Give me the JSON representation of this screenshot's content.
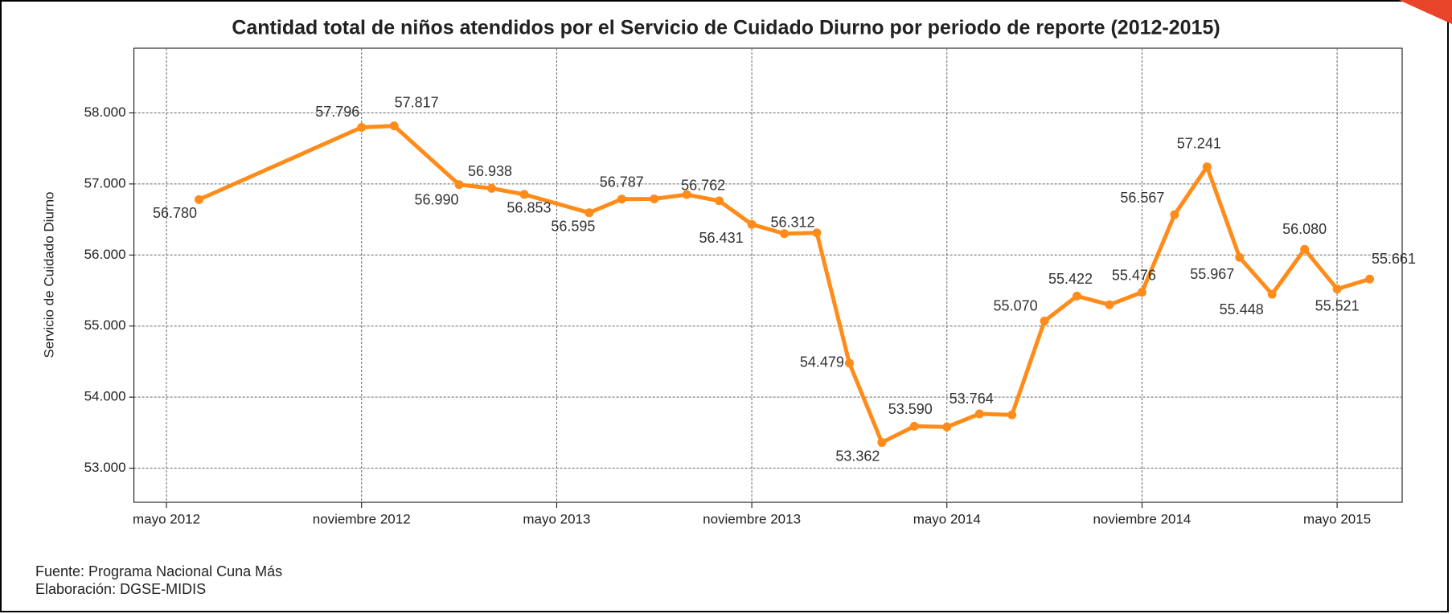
{
  "chart_data": {
    "type": "line",
    "title": "Cantidad total de niños atendidos por el Servicio de Cuidado Diurno por periodo de reporte (2012-2015)",
    "y_label": "Servicio de Cuidado Diurno",
    "footnotes": [
      "Fuente: Programa Nacional Cuna Más",
      "Elaboración: DGSE-MIDIS"
    ],
    "x": [
      "2012-06",
      "2012-11",
      "2012-12",
      "2013-02",
      "2013-03",
      "2013-04",
      "2013-06",
      "2013-07",
      "2013-08",
      "2013-09",
      "2013-10",
      "2013-11",
      "2013-12",
      "2014-01",
      "2014-02",
      "2014-03",
      "2014-04",
      "2014-05",
      "2014-06",
      "2014-07",
      "2014-08",
      "2014-09",
      "2014-10",
      "2014-11",
      "2014-12",
      "2015-01",
      "2015-02",
      "2015-03",
      "2015-04",
      "2015-05",
      "2015-06"
    ],
    "series": [
      {
        "name": "Servicio de Cuidado Diurno",
        "color": "#ff8c1a",
        "values": [
          56780,
          57796,
          57817,
          56990,
          56938,
          56853,
          56595,
          56787,
          56790,
          56850,
          56762,
          56431,
          56300,
          56312,
          54479,
          53362,
          53590,
          53580,
          53764,
          53750,
          55070,
          55422,
          55300,
          55476,
          56567,
          57241,
          55967,
          55448,
          56080,
          55521,
          55661
        ],
        "value_labels": [
          "56.780",
          "57.796",
          "57.817",
          "56.990",
          "56.938",
          "56.853",
          "56.595",
          "56.787",
          null,
          null,
          "56.762",
          "56.431",
          null,
          "56.312",
          "54.479",
          "53.362",
          "53.590",
          null,
          "53.764",
          null,
          "55.070",
          "55.422",
          null,
          "55.476",
          "56.567",
          "57.241",
          "55.967",
          "55.448",
          "56.080",
          "55.521",
          "55.661"
        ]
      }
    ],
    "xlim": [
      "2012-04",
      "2015-07"
    ],
    "xticks": [
      {
        "value": "2012-05",
        "label": "mayo 2012"
      },
      {
        "value": "2012-11",
        "label": "noviembre 2012"
      },
      {
        "value": "2013-05",
        "label": "mayo 2013"
      },
      {
        "value": "2013-11",
        "label": "noviembre 2013"
      },
      {
        "value": "2014-05",
        "label": "mayo 2014"
      },
      {
        "value": "2014-11",
        "label": "noviembre 2014"
      },
      {
        "value": "2015-05",
        "label": "mayo 2015"
      }
    ],
    "ylim": [
      52520,
      58910
    ],
    "yticks": [
      {
        "value": 53000,
        "label": "53.000"
      },
      {
        "value": 54000,
        "label": "54.000"
      },
      {
        "value": 55000,
        "label": "55.000"
      },
      {
        "value": 56000,
        "label": "56.000"
      },
      {
        "value": 57000,
        "label": "57.000"
      },
      {
        "value": 58000,
        "label": "58.000"
      }
    ],
    "grid": true
  }
}
